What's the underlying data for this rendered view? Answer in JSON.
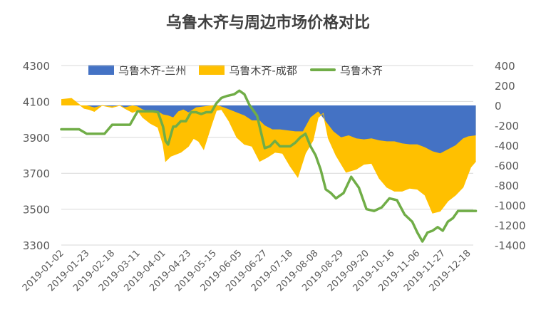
{
  "chart_data": {
    "type": "area",
    "title": "乌鲁木齐与周边市场价格对比",
    "x_tick_labels": [
      "2019-01-02",
      "2019-01-23",
      "2019-02-18",
      "2019-03-11",
      "2019-04-01",
      "2019-04-23",
      "2019-05-15",
      "2019-06-05",
      "2019-06-27",
      "2019-07-18",
      "2019-08-08",
      "2019-08-29",
      "2019-09-20",
      "2019-10-16",
      "2019-11-06",
      "2019-11-27",
      "2019-12-18"
    ],
    "y_left": {
      "ticks": [
        "4300",
        "4100",
        "3900",
        "3700",
        "3500",
        "3300"
      ],
      "min": 3300,
      "max": 4300
    },
    "y_right": {
      "ticks": [
        "400",
        "200",
        "0",
        "-200",
        "-400",
        "-600",
        "-800",
        "-1000",
        "-1200",
        "-1400"
      ],
      "min": -1400,
      "max": 400
    },
    "legend": {
      "position": "top",
      "entries": [
        "乌鲁木齐-兰州",
        "乌鲁木齐-成都",
        "乌鲁木齐"
      ]
    },
    "colors": {
      "lanzhou": "#4472C4",
      "chengdu": "#FFC000",
      "urumqi": "#70AD47",
      "grid": "#d9d9d9",
      "text": "#595959"
    },
    "series": [
      {
        "name": "乌鲁木齐-兰州",
        "axis": "right",
        "kind": "area",
        "x": [
          0,
          0.4,
          1,
          1.3,
          1.6,
          2,
          2.3,
          2.5,
          2.8,
          3,
          3.2,
          3.5,
          3.8,
          4,
          4.2,
          4.4,
          4.6,
          4.8,
          5,
          5.3,
          5.6,
          5.9,
          6.1,
          6.4,
          6.7,
          7,
          7.2,
          7.5,
          7.8,
          8,
          8.3,
          8.6,
          8.9,
          9.2,
          9.5,
          9.8,
          10.1,
          10.4,
          10.7,
          11,
          11.3,
          11.6,
          11.9,
          12.2,
          12.5,
          12.8,
          13.1,
          13.4,
          13.7,
          14,
          14.3,
          14.6,
          14.9,
          15.2,
          15.5,
          15.8,
          16,
          16.3
        ],
        "y": [
          0,
          0,
          0,
          -20,
          0,
          -10,
          0,
          -20,
          0,
          -10,
          -40,
          -60,
          -60,
          -90,
          -100,
          -120,
          -60,
          -40,
          -70,
          -20,
          -10,
          0,
          5,
          -20,
          -50,
          -80,
          -100,
          -150,
          -150,
          -200,
          -240,
          -240,
          -250,
          -260,
          -260,
          -120,
          -60,
          -160,
          -260,
          -320,
          -300,
          -330,
          -340,
          -330,
          -350,
          -360,
          -360,
          -380,
          -390,
          -390,
          -420,
          -460,
          -480,
          -440,
          -400,
          -330,
          -310,
          -300
        ]
      },
      {
        "name": "乌鲁木齐-成都",
        "axis": "right",
        "kind": "area",
        "x": [
          0,
          0.4,
          0.6,
          0.9,
          1.1,
          1.3,
          1.6,
          2,
          2.3,
          2.5,
          2.8,
          3,
          3.2,
          3.5,
          3.8,
          4,
          4.1,
          4.3,
          4.5,
          4.7,
          5,
          5.2,
          5.4,
          5.6,
          5.9,
          6.1,
          6.3,
          6.6,
          6.9,
          7.2,
          7.5,
          7.8,
          8.1,
          8.4,
          8.7,
          9,
          9.3,
          9.6,
          9.9,
          10.1,
          10.3,
          10.5,
          10.8,
          11.2,
          11.6,
          11.9,
          12.2,
          12.5,
          12.8,
          13.1,
          13.4,
          13.7,
          14,
          14.3,
          14.6,
          14.9,
          15.2,
          15.5,
          15.8,
          16.1,
          16.3
        ],
        "y": [
          60,
          70,
          30,
          -30,
          -40,
          -60,
          0,
          -20,
          0,
          -30,
          -70,
          -50,
          -120,
          -180,
          -220,
          -390,
          -560,
          -510,
          -490,
          -470,
          -410,
          -330,
          -360,
          -440,
          -200,
          -50,
          -40,
          -160,
          -320,
          -390,
          -410,
          -560,
          -520,
          -470,
          -480,
          -610,
          -720,
          -480,
          -350,
          -120,
          -80,
          -330,
          -500,
          -670,
          -640,
          -590,
          -580,
          -730,
          -820,
          -860,
          -860,
          -830,
          -840,
          -900,
          -1080,
          -1060,
          -960,
          -900,
          -820,
          -620,
          -560
        ]
      },
      {
        "name": "乌鲁木齐",
        "axis": "left",
        "kind": "line",
        "x": [
          0,
          0.7,
          1,
          1.5,
          1.7,
          2,
          2.3,
          2.7,
          3,
          3.3,
          3.6,
          3.8,
          4,
          4.1,
          4.2,
          4.4,
          4.5,
          4.7,
          4.9,
          5.1,
          5.3,
          5.5,
          5.7,
          5.9,
          6.1,
          6.3,
          6.5,
          6.8,
          7,
          7.2,
          7.4,
          7.7,
          8,
          8.2,
          8.4,
          8.6,
          8.8,
          9,
          9.2,
          9.4,
          9.6,
          9.8,
          10,
          10.2,
          10.4,
          10.6,
          10.8,
          11.1,
          11.4,
          11.7,
          12,
          12.3,
          12.6,
          12.9,
          13.2,
          13.5,
          13.8,
          14,
          14.2,
          14.4,
          14.6,
          14.8,
          15,
          15.2,
          15.4,
          15.6,
          15.8,
          16,
          16.3
        ],
        "y": [
          3945,
          3945,
          3920,
          3920,
          3920,
          3970,
          3970,
          3970,
          4045,
          4045,
          4045,
          4040,
          3960,
          3880,
          3860,
          3960,
          3960,
          3990,
          3990,
          4040,
          4040,
          4030,
          4040,
          4040,
          4090,
          4120,
          4130,
          4140,
          4160,
          4140,
          4080,
          4020,
          3840,
          3850,
          3880,
          3850,
          3850,
          3850,
          3870,
          3900,
          3920,
          3850,
          3800,
          3720,
          3610,
          3590,
          3560,
          3590,
          3680,
          3620,
          3500,
          3490,
          3510,
          3560,
          3550,
          3470,
          3430,
          3370,
          3320,
          3370,
          3380,
          3400,
          3380,
          3430,
          3450,
          3490,
          3490,
          3490,
          3490
        ]
      }
    ]
  }
}
